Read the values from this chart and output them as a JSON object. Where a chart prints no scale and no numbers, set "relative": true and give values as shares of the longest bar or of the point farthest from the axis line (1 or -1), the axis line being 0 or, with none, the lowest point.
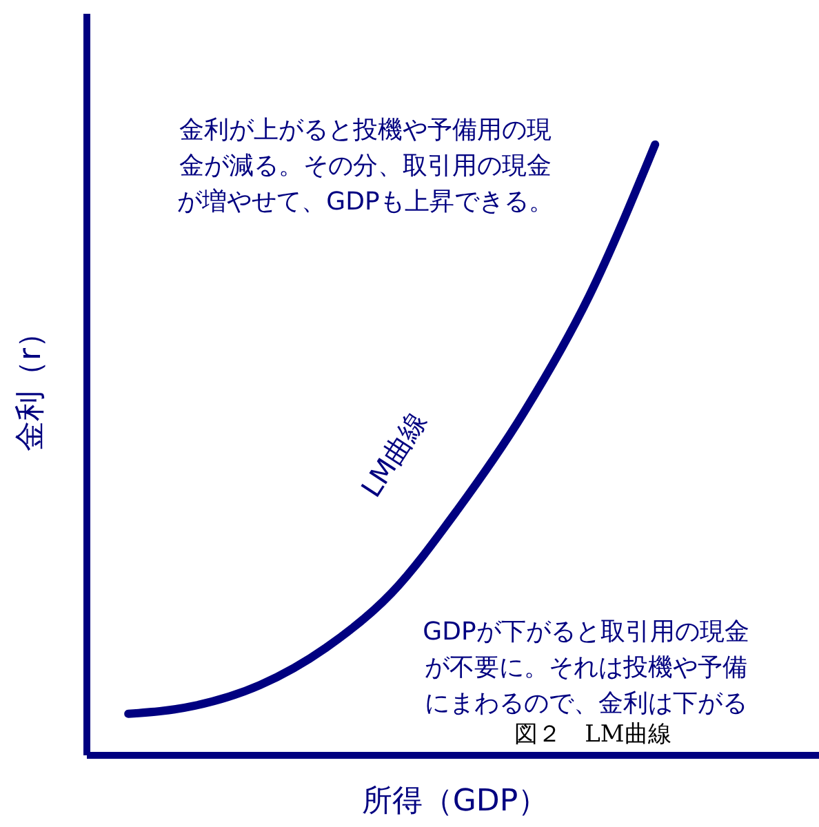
{
  "chart_data": {
    "type": "line",
    "relative": true,
    "xlabel": "所得（GDP）",
    "ylabel": "金利（r）",
    "categories": [
      null,
      null,
      null,
      null,
      null,
      null,
      null,
      null,
      null
    ],
    "series": [
      {
        "name": "LM曲線",
        "color": "#000080",
        "values": [
          0.068,
          0.081,
          0.115,
          0.176,
          0.266,
          0.402,
          0.56,
          0.752,
          1
        ]
      }
    ],
    "marker": "none",
    "grid": false,
    "legend": false,
    "annotations": [
      "金利が上がると投機や予備用の現金が減る。その分、取引用の現金が増やせて、GDPも上昇できる。",
      "GDPが下がると取引用の現金が不要に。それは投機や予備にまわるので、金利は下がる",
      "図２　LM曲線"
    ]
  }
}
